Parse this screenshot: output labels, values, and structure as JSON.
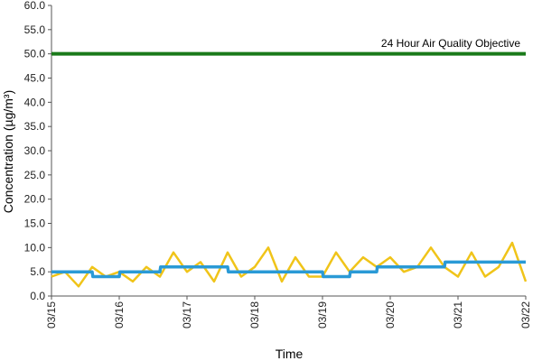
{
  "chart_data": {
    "type": "line",
    "title": "",
    "xlabel": "Time",
    "ylabel": "Concentration (µg/m³)",
    "ylim": [
      0,
      60
    ],
    "y_ticks": [
      "0.0",
      "5.0",
      "10.0",
      "15.0",
      "20.0",
      "25.0",
      "30.0",
      "35.0",
      "40.0",
      "45.0",
      "50.0",
      "55.0",
      "60.0"
    ],
    "x_ticks": [
      "03/15",
      "03/16",
      "03/17",
      "03/18",
      "03/19",
      "03/20",
      "03/21",
      "03/22"
    ],
    "grid": false,
    "legend": "none",
    "objective": {
      "label": "24 Hour Air Quality Objective",
      "value": 50,
      "color": "#1a7a1a"
    },
    "series": [
      {
        "color": "#f0c419",
        "x": [
          0,
          0.2,
          0.4,
          0.6,
          0.8,
          1,
          1.2,
          1.4,
          1.6,
          1.8,
          2,
          2.2,
          2.4,
          2.6,
          2.8,
          3,
          3.2,
          3.4,
          3.6,
          3.8,
          4,
          4.2,
          4.4,
          4.6,
          4.8,
          5,
          5.2,
          5.4,
          5.6,
          5.8,
          6,
          6.2,
          6.4,
          6.6,
          6.8,
          7
        ],
        "values": [
          4,
          5,
          2,
          6,
          4,
          5,
          3,
          6,
          4,
          9,
          5,
          7,
          3,
          9,
          4,
          6,
          10,
          3,
          8,
          4,
          4,
          9,
          5,
          8,
          6,
          8,
          5,
          6,
          10,
          6,
          4,
          9,
          4,
          6,
          11,
          3
        ]
      },
      {
        "color": "#2a9ad6",
        "x": [
          0,
          0.6,
          0.61,
          1.0,
          1.01,
          1.6,
          1.61,
          2.6,
          2.61,
          3.0,
          3.01,
          4.0,
          4.01,
          4.4,
          4.41,
          4.8,
          4.81,
          5.8,
          5.81,
          6.1,
          6.11,
          7
        ],
        "values": [
          5,
          5,
          4,
          4,
          5,
          5,
          6,
          6,
          5,
          5,
          5,
          5,
          4,
          4,
          5,
          5,
          6,
          6,
          7,
          7,
          7,
          7
        ]
      }
    ]
  }
}
